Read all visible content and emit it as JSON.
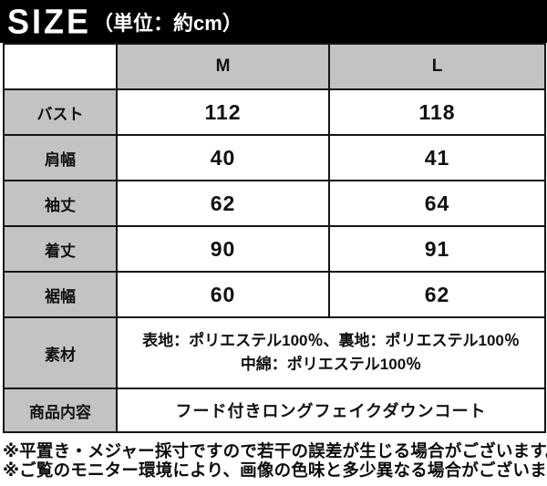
{
  "chart_data": {
    "type": "table",
    "title": "SIZE（単位：約cm）",
    "columns": [
      "",
      "M",
      "L"
    ],
    "rows": [
      {
        "label": "バスト",
        "M": "112",
        "L": "118"
      },
      {
        "label": "肩幅",
        "M": "40",
        "L": "41"
      },
      {
        "label": "袖丈",
        "M": "62",
        "L": "64"
      },
      {
        "label": "着丈",
        "M": "90",
        "L": "91"
      },
      {
        "label": "裾幅",
        "M": "60",
        "L": "62"
      },
      {
        "label": "素材",
        "value": "表地：ポリエステル100％、裏地：ポリエステル100％ 中綿：ポリエステル100％"
      },
      {
        "label": "商品内容",
        "value": "フード付きロングフェイクダウンコート"
      }
    ]
  },
  "title": {
    "main": "SIZE",
    "unit": "（単位：約cm）"
  },
  "table": {
    "col_m": "M",
    "col_l": "L",
    "rows": [
      {
        "label": "バスト",
        "m": "112",
        "l": "118"
      },
      {
        "label": "肩幅",
        "m": "40",
        "l": "41"
      },
      {
        "label": "袖丈",
        "m": "62",
        "l": "64"
      },
      {
        "label": "着丈",
        "m": "90",
        "l": "91"
      },
      {
        "label": "裾幅",
        "m": "60",
        "l": "62"
      }
    ],
    "material": {
      "label": "素材",
      "line1": "表地：ポリエステル100％、裏地：ポリエステル100％",
      "line2": "中綿：ポリエステル100％"
    },
    "product": {
      "label": "商品内容",
      "value": "フード付きロングフェイクダウンコート"
    }
  },
  "notes": [
    "※平置き・メジャー採寸ですので若干の誤差が生じる場合がございます。",
    "※ご覧のモニター環境により、画像の色味と多少異なる場合がございます。"
  ],
  "colors": {
    "title_bg": "#000000",
    "title_text": "#ffffff",
    "header_bg": "#c3c3c3",
    "label_bg": "#c3c3c3",
    "cell_bg": "#ffffff",
    "border": "#141414"
  }
}
